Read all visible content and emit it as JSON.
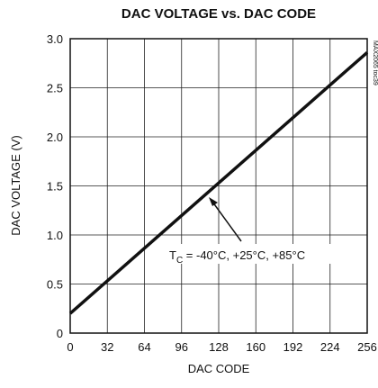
{
  "chart_data": {
    "type": "line",
    "title": "DAC VOLTAGE vs. DAC CODE",
    "x_label": "DAC CODE",
    "y_label": "DAC VOLTAGE (V)",
    "x": [
      0,
      256
    ],
    "series": [
      {
        "color": "#111111",
        "values": [
          0.2,
          2.86
        ]
      }
    ],
    "xlim": [
      0,
      256
    ],
    "xticks": [
      0,
      32,
      64,
      96,
      128,
      160,
      192,
      224,
      256
    ],
    "ylim": [
      0,
      3
    ],
    "yticks": [
      {
        "value": 0,
        "label": "0"
      },
      {
        "value": 0.5,
        "label": "0.5"
      },
      {
        "value": 1,
        "label": "1.0"
      },
      {
        "value": 1.5,
        "label": "1.5"
      },
      {
        "value": 2,
        "label": "2.0"
      },
      {
        "value": 2.5,
        "label": "2.5"
      },
      {
        "value": 3,
        "label": "3.0"
      }
    ],
    "grid": true,
    "annotation": [
      "T",
      "C",
      " = -40°C, +25°C, +85°C"
    ],
    "figure_id": "MAX2065 toc39"
  }
}
